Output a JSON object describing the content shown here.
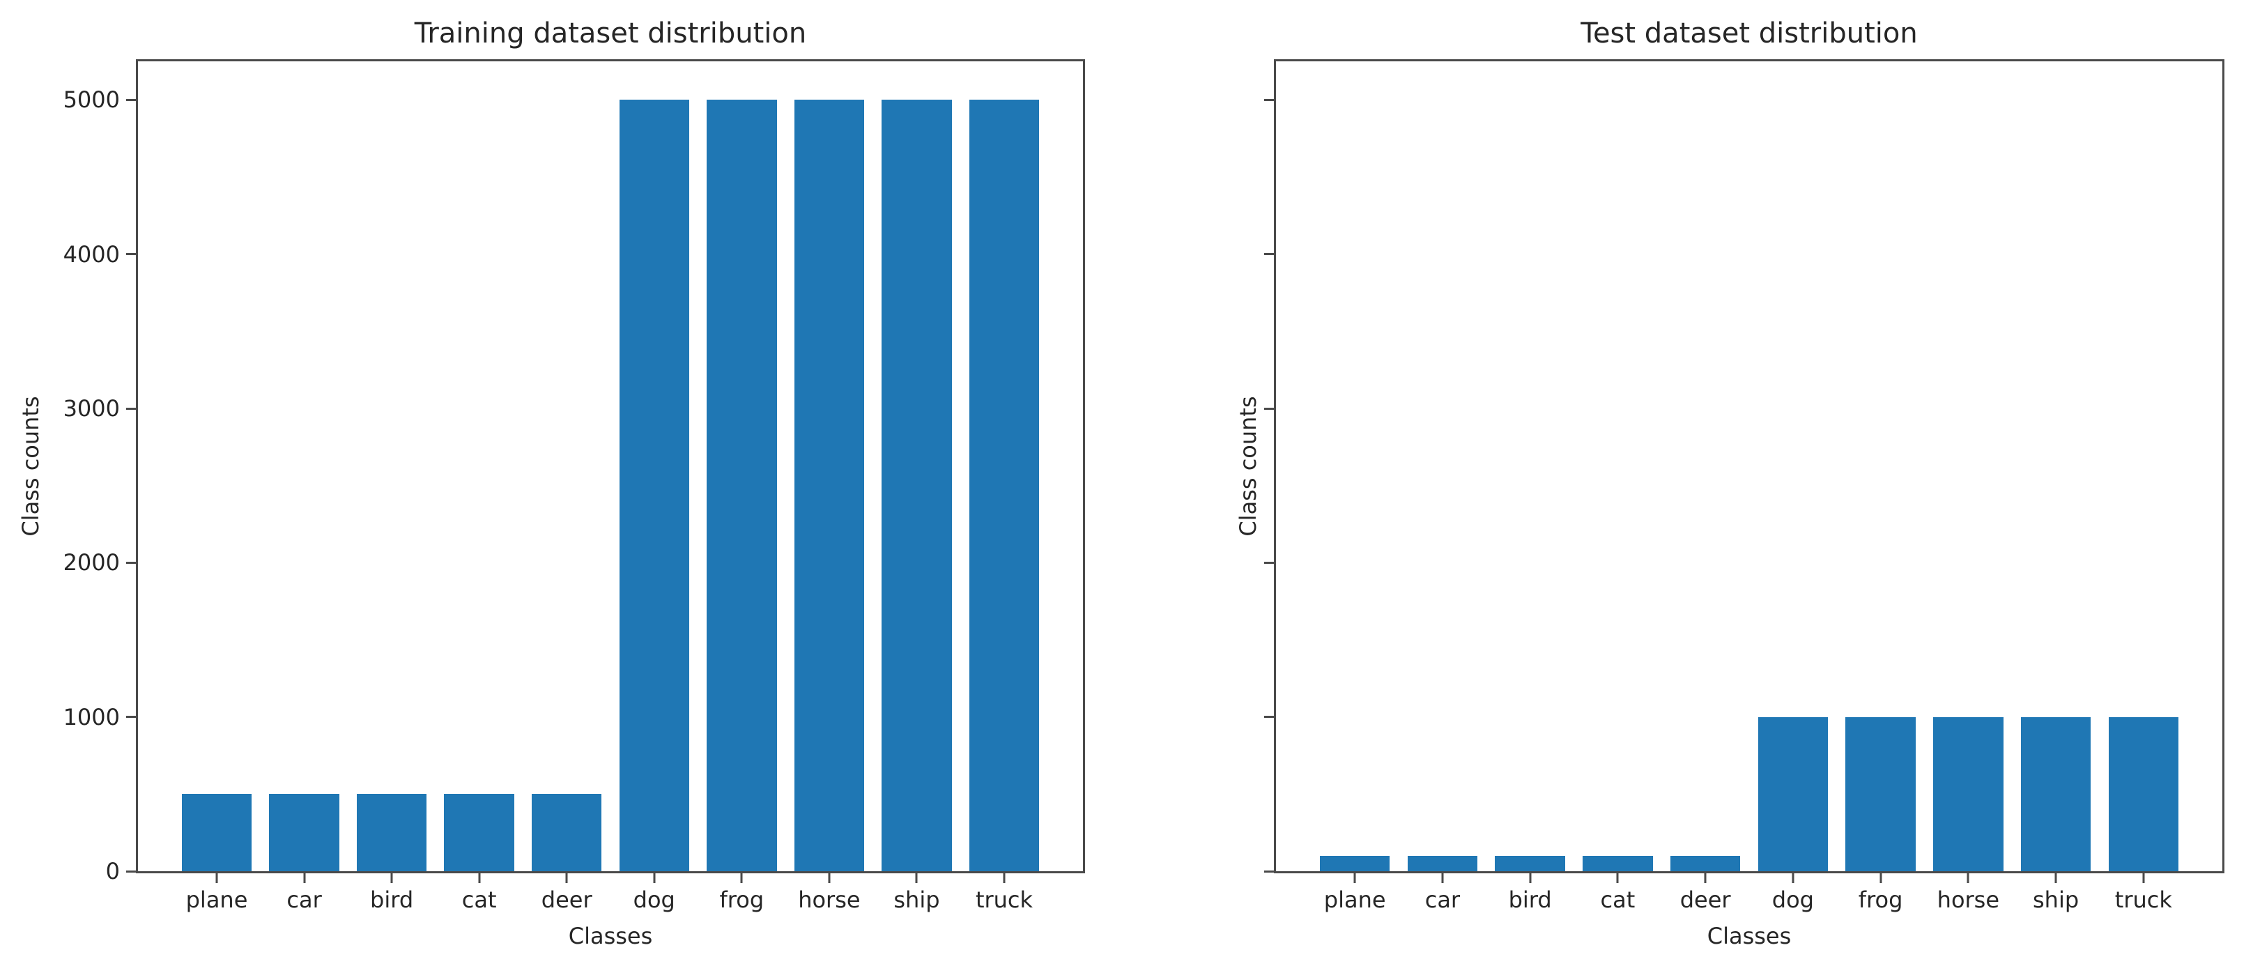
{
  "figure": {
    "background": "#ffffff",
    "bar_color": "#1f77b4",
    "spine_color": "#4a4a4a",
    "text_color": "#262626"
  },
  "chart_data": [
    {
      "type": "bar",
      "title": "Training dataset distribution",
      "xlabel": "Classes",
      "ylabel": "Class counts",
      "categories": [
        "plane",
        "car",
        "bird",
        "cat",
        "deer",
        "dog",
        "frog",
        "horse",
        "ship",
        "truck"
      ],
      "values": [
        500,
        500,
        500,
        500,
        500,
        5000,
        5000,
        5000,
        5000,
        5000
      ],
      "ylim": [
        0,
        5250
      ],
      "yticks": [
        0,
        1000,
        2000,
        3000,
        4000,
        5000
      ],
      "ytick_labels_visible": true,
      "grid": false,
      "legend": null
    },
    {
      "type": "bar",
      "title": "Test dataset distribution",
      "xlabel": "Classes",
      "ylabel": "Class counts",
      "categories": [
        "plane",
        "car",
        "bird",
        "cat",
        "deer",
        "dog",
        "frog",
        "horse",
        "ship",
        "truck"
      ],
      "values": [
        100,
        100,
        100,
        100,
        100,
        1000,
        1000,
        1000,
        1000,
        1000
      ],
      "ylim": [
        0,
        5250
      ],
      "yticks": [
        0,
        1000,
        2000,
        3000,
        4000,
        5000
      ],
      "ytick_labels_visible": false,
      "grid": false,
      "legend": null
    }
  ]
}
